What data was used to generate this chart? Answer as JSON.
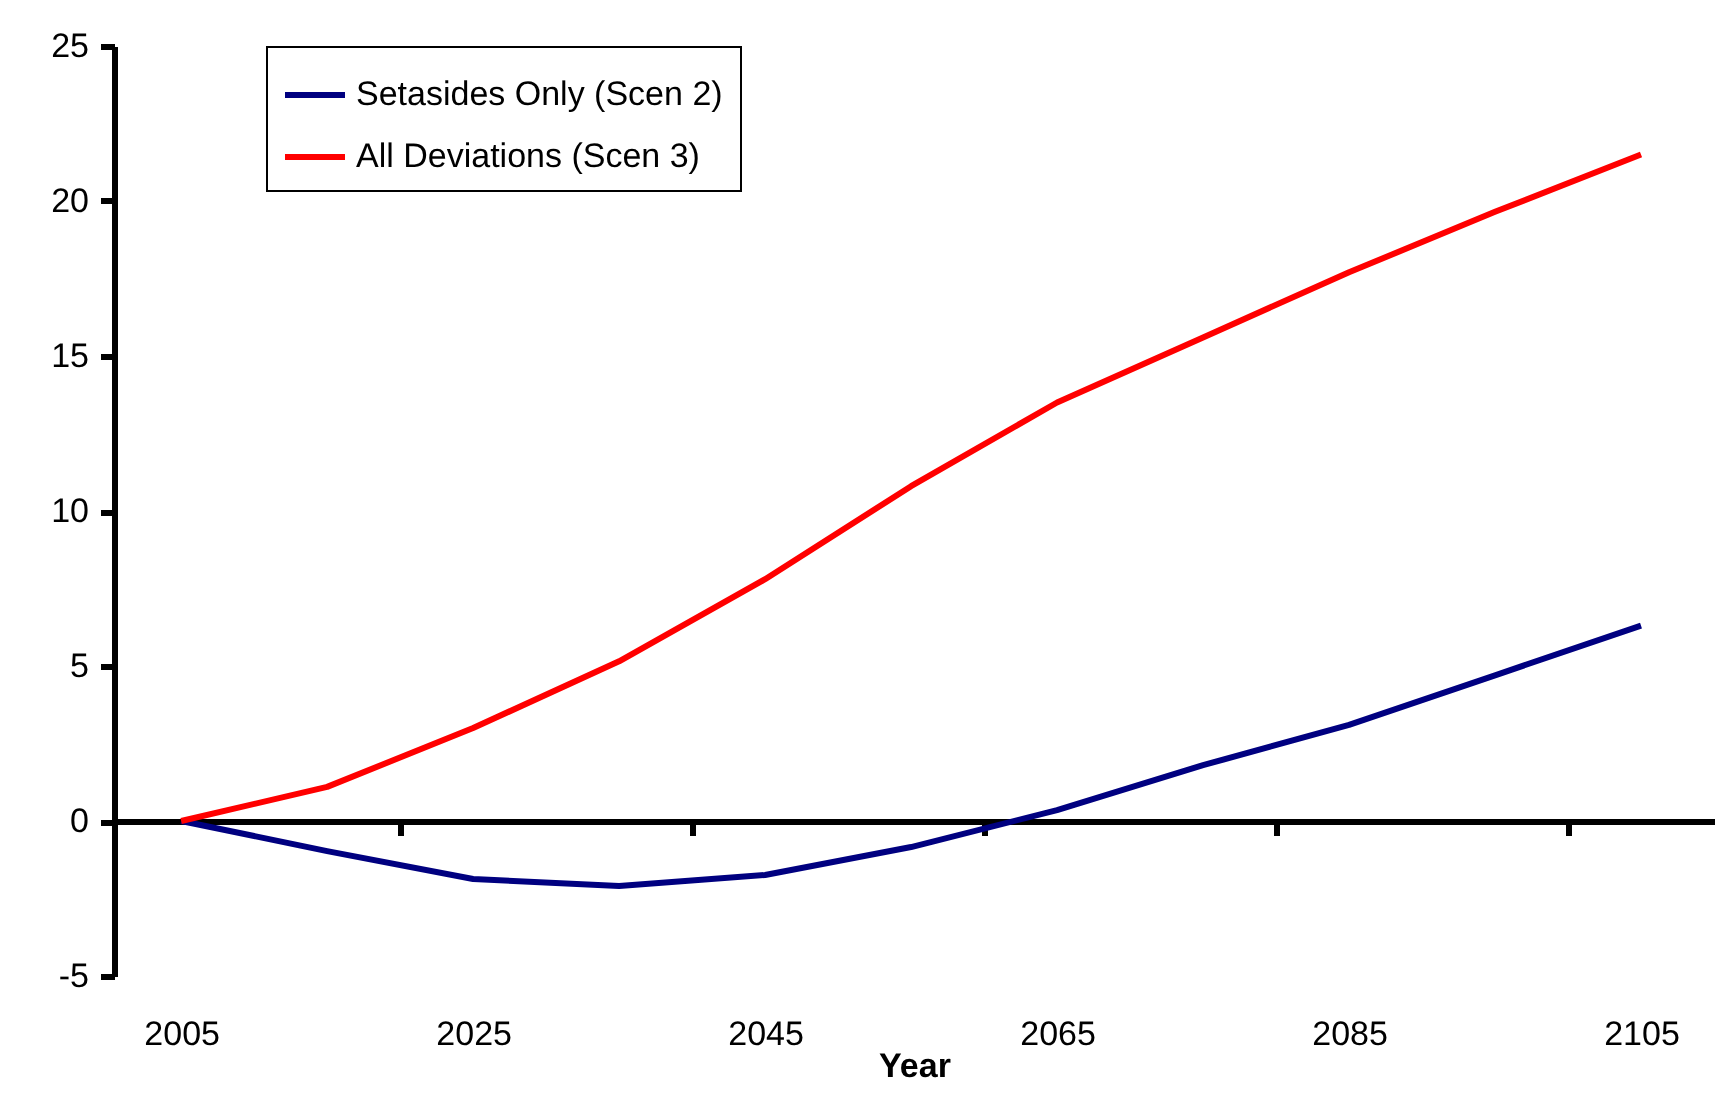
{
  "chart_data": {
    "type": "line",
    "xlabel": "Year",
    "x": [
      2005,
      2015,
      2025,
      2035,
      2045,
      2055,
      2065,
      2075,
      2085,
      2095,
      2105
    ],
    "series": [
      {
        "name": "Setasides Only (Scen 2)",
        "color": "#000080",
        "values": [
          0,
          -0.97,
          -1.87,
          -2.1,
          -1.74,
          -0.84,
          0.35,
          1.8,
          3.1,
          4.7,
          6.3
        ]
      },
      {
        "name": "All Deviations (Scen 3)",
        "color": "#ff0000",
        "values": [
          0,
          1.1,
          3.0,
          5.15,
          7.8,
          10.8,
          13.5,
          15.6,
          17.7,
          19.65,
          21.5
        ]
      }
    ],
    "xlim": [
      2000.4,
      2110
    ],
    "xticks": [
      2005,
      {
        "value": 2020,
        "label": null
      },
      2025,
      {
        "value": 2040,
        "label": null
      },
      2045,
      {
        "value": 2060,
        "label": null
      },
      2065,
      {
        "value": 2080,
        "label": null
      },
      2085,
      {
        "value": 2100,
        "label": null
      },
      2105
    ],
    "ylim": [
      -5,
      25
    ],
    "yticks": [
      -5,
      0,
      5,
      10,
      15,
      20,
      25
    ],
    "legend": "top left",
    "marker": "none",
    "line_style": "solid"
  }
}
